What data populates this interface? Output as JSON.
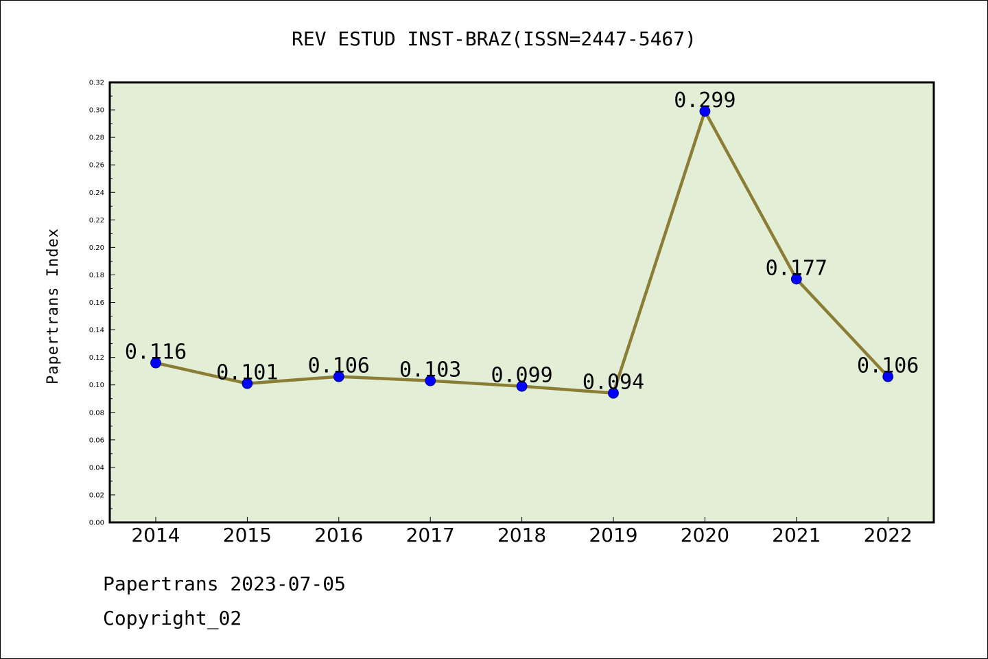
{
  "chart_data": {
    "type": "line",
    "title": "REV ESTUD INST-BRAZ(ISSN=2447-5467)",
    "xlabel": "",
    "ylabel": "Papertrans Index",
    "categories": [
      "2014",
      "2015",
      "2016",
      "2017",
      "2018",
      "2019",
      "2020",
      "2021",
      "2022"
    ],
    "values": [
      0.116,
      0.101,
      0.106,
      0.103,
      0.099,
      0.094,
      0.299,
      0.177,
      0.106
    ],
    "data_labels": [
      "0.116",
      "0.101",
      "0.106",
      "0.103",
      "0.099",
      "0.094",
      "0.299",
      "0.177",
      "0.106"
    ],
    "ylim": [
      0,
      0.32
    ],
    "yticks": [
      "0.00",
      "0.02",
      "0.04",
      "0.06",
      "0.08",
      "0.10",
      "0.12",
      "0.14",
      "0.16",
      "0.18",
      "0.20",
      "0.22",
      "0.24",
      "0.26",
      "0.28",
      "0.30",
      "0.32"
    ],
    "grid": false,
    "legend": "none",
    "colors": {
      "plot_background": "#e2efd6",
      "line": "#8b7d35",
      "marker": "#0000ff"
    }
  },
  "footer": {
    "line1": "Papertrans 2023-07-05",
    "line2": "Copyright_02"
  }
}
